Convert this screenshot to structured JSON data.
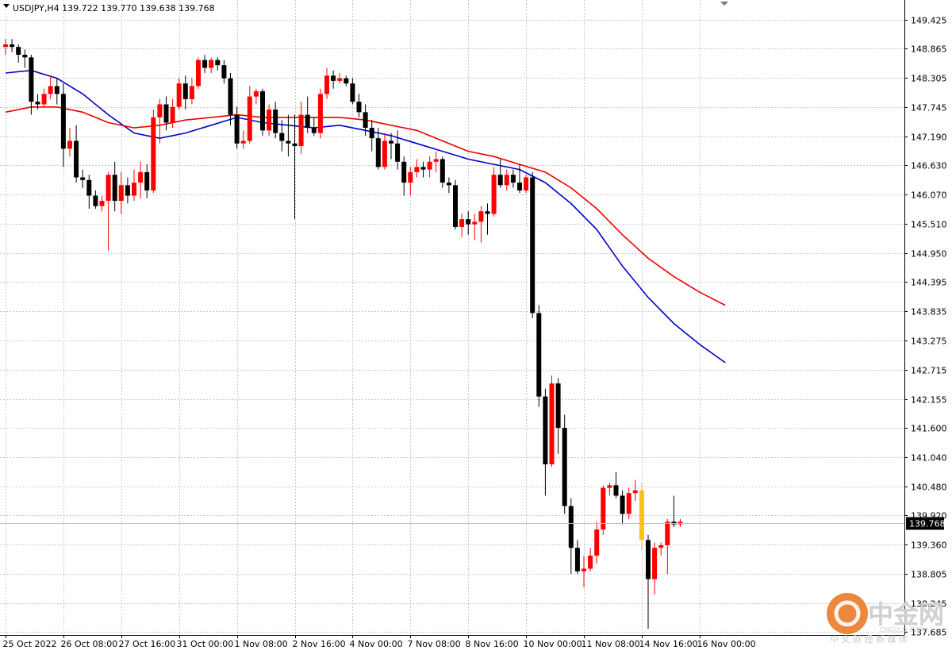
{
  "window": {
    "title": "USDJPY,H4  139.722 139.770 139.638 139.768"
  },
  "watermark": {
    "brand": "中金网",
    "site": "CNGOLD.COM",
    "tagline": "中 文 财 经 新 媒 体",
    "icon": "cngold-logo-icon"
  },
  "colors": {
    "bull": "#ff0000",
    "bear": "#000000",
    "highlight": "#f5c518",
    "ma_fast": "#0000cc",
    "ma_slow": "#ee0000",
    "grid": "#c8c8c8",
    "price_tag_bg": "#000000"
  },
  "chart_data": {
    "type": "candlestick",
    "symbol": "USDJPY",
    "timeframe": "H4",
    "title": "USDJPY,H4  139.722 139.770 139.638 139.768",
    "current_price": "139.768",
    "ylim": [
      137.63,
      149.8
    ],
    "grid": true,
    "y_ticks": [
      "149.425",
      "148.865",
      "148.305",
      "147.745",
      "147.190",
      "146.630",
      "146.070",
      "145.510",
      "144.950",
      "144.395",
      "143.835",
      "143.275",
      "142.715",
      "142.155",
      "141.600",
      "141.040",
      "140.480",
      "139.920",
      "139.360",
      "138.805",
      "138.245",
      "137.685"
    ],
    "x_ticks": [
      {
        "index": 0,
        "label": "25 Oct 2022"
      },
      {
        "index": 9,
        "label": "26 Oct 08:00"
      },
      {
        "index": 18,
        "label": "27 Oct 16:00"
      },
      {
        "index": 27,
        "label": "31 Oct 00:00"
      },
      {
        "index": 36,
        "label": "1 Nov 08:00"
      },
      {
        "index": 45,
        "label": "2 Nov 16:00"
      },
      {
        "index": 54,
        "label": "4 Nov 00:00"
      },
      {
        "index": 63,
        "label": "7 Nov 08:00"
      },
      {
        "index": 72,
        "label": "8 Nov 16:00"
      },
      {
        "index": 81,
        "label": "10 Nov 00:00"
      },
      {
        "index": 90,
        "label": "11 Nov 08:00"
      },
      {
        "index": 99,
        "label": "14 Nov 16:00"
      },
      {
        "index": 108,
        "label": "16 Nov 00:00"
      }
    ],
    "candles": [
      {
        "o": 148.9,
        "h": 149.05,
        "l": 148.75,
        "c": 148.95
      },
      {
        "o": 148.95,
        "h": 149.05,
        "l": 148.8,
        "c": 148.9
      },
      {
        "o": 148.9,
        "h": 148.95,
        "l": 148.6,
        "c": 148.75
      },
      {
        "o": 148.75,
        "h": 148.85,
        "l": 148.5,
        "c": 148.7
      },
      {
        "o": 148.7,
        "h": 148.75,
        "l": 147.6,
        "c": 147.85
      },
      {
        "o": 147.85,
        "h": 148.0,
        "l": 147.7,
        "c": 147.8
      },
      {
        "o": 147.8,
        "h": 148.1,
        "l": 147.75,
        "c": 148.0
      },
      {
        "o": 148.0,
        "h": 148.35,
        "l": 147.9,
        "c": 148.15
      },
      {
        "o": 148.15,
        "h": 148.3,
        "l": 147.8,
        "c": 148.0
      },
      {
        "o": 148.0,
        "h": 148.2,
        "l": 146.6,
        "c": 146.95
      },
      {
        "o": 146.95,
        "h": 147.35,
        "l": 146.8,
        "c": 147.1
      },
      {
        "o": 147.1,
        "h": 147.4,
        "l": 146.3,
        "c": 146.4
      },
      {
        "o": 146.4,
        "h": 146.55,
        "l": 146.2,
        "c": 146.35
      },
      {
        "o": 146.35,
        "h": 146.45,
        "l": 145.8,
        "c": 146.05
      },
      {
        "o": 146.05,
        "h": 146.15,
        "l": 145.8,
        "c": 145.85
      },
      {
        "o": 145.85,
        "h": 146.05,
        "l": 145.75,
        "c": 145.95
      },
      {
        "o": 145.95,
        "h": 146.5,
        "l": 145.0,
        "c": 146.45
      },
      {
        "o": 146.45,
        "h": 146.7,
        "l": 145.75,
        "c": 145.95
      },
      {
        "o": 145.95,
        "h": 146.5,
        "l": 145.7,
        "c": 146.25
      },
      {
        "o": 146.25,
        "h": 146.4,
        "l": 145.9,
        "c": 146.05
      },
      {
        "o": 146.05,
        "h": 146.55,
        "l": 145.95,
        "c": 146.3
      },
      {
        "o": 146.3,
        "h": 146.7,
        "l": 146.0,
        "c": 146.5
      },
      {
        "o": 146.5,
        "h": 146.65,
        "l": 146.0,
        "c": 146.15
      },
      {
        "o": 146.15,
        "h": 147.7,
        "l": 146.1,
        "c": 147.55
      },
      {
        "o": 147.55,
        "h": 147.9,
        "l": 147.05,
        "c": 147.8
      },
      {
        "o": 147.8,
        "h": 147.95,
        "l": 147.3,
        "c": 147.45
      },
      {
        "o": 147.45,
        "h": 147.9,
        "l": 147.35,
        "c": 147.75
      },
      {
        "o": 147.75,
        "h": 148.3,
        "l": 147.7,
        "c": 148.2
      },
      {
        "o": 148.2,
        "h": 148.35,
        "l": 147.7,
        "c": 147.9
      },
      {
        "o": 147.9,
        "h": 148.3,
        "l": 147.8,
        "c": 148.15
      },
      {
        "o": 148.15,
        "h": 148.7,
        "l": 148.1,
        "c": 148.65
      },
      {
        "o": 148.65,
        "h": 148.75,
        "l": 148.4,
        "c": 148.5
      },
      {
        "o": 148.5,
        "h": 148.7,
        "l": 148.4,
        "c": 148.65
      },
      {
        "o": 148.65,
        "h": 148.7,
        "l": 148.45,
        "c": 148.55
      },
      {
        "o": 148.55,
        "h": 148.65,
        "l": 148.2,
        "c": 148.3
      },
      {
        "o": 148.3,
        "h": 148.4,
        "l": 147.4,
        "c": 147.6
      },
      {
        "o": 147.6,
        "h": 147.75,
        "l": 146.95,
        "c": 147.05
      },
      {
        "o": 147.05,
        "h": 147.3,
        "l": 146.95,
        "c": 147.1
      },
      {
        "o": 147.1,
        "h": 148.15,
        "l": 147.05,
        "c": 147.95
      },
      {
        "o": 147.95,
        "h": 148.1,
        "l": 147.8,
        "c": 148.05
      },
      {
        "o": 148.05,
        "h": 148.1,
        "l": 147.2,
        "c": 147.3
      },
      {
        "o": 147.3,
        "h": 147.8,
        "l": 147.2,
        "c": 147.7
      },
      {
        "o": 147.7,
        "h": 147.85,
        "l": 147.15,
        "c": 147.25
      },
      {
        "o": 147.25,
        "h": 147.5,
        "l": 146.9,
        "c": 147.1
      },
      {
        "o": 147.1,
        "h": 147.6,
        "l": 146.8,
        "c": 147.05
      },
      {
        "o": 147.05,
        "h": 147.6,
        "l": 145.6,
        "c": 147.0
      },
      {
        "o": 147.0,
        "h": 147.85,
        "l": 146.85,
        "c": 147.6
      },
      {
        "o": 147.6,
        "h": 147.95,
        "l": 147.25,
        "c": 147.35
      },
      {
        "o": 147.35,
        "h": 147.55,
        "l": 147.2,
        "c": 147.25
      },
      {
        "o": 147.25,
        "h": 148.1,
        "l": 147.15,
        "c": 148.0
      },
      {
        "o": 148.0,
        "h": 148.5,
        "l": 147.9,
        "c": 148.35
      },
      {
        "o": 148.35,
        "h": 148.45,
        "l": 148.1,
        "c": 148.25
      },
      {
        "o": 148.25,
        "h": 148.4,
        "l": 148.2,
        "c": 148.3
      },
      {
        "o": 148.3,
        "h": 148.35,
        "l": 148.15,
        "c": 148.2
      },
      {
        "o": 148.2,
        "h": 148.3,
        "l": 147.8,
        "c": 147.85
      },
      {
        "o": 147.85,
        "h": 148.0,
        "l": 147.55,
        "c": 147.65
      },
      {
        "o": 147.65,
        "h": 147.8,
        "l": 147.2,
        "c": 147.35
      },
      {
        "o": 147.35,
        "h": 147.5,
        "l": 146.9,
        "c": 147.15
      },
      {
        "o": 147.15,
        "h": 147.35,
        "l": 146.55,
        "c": 146.6
      },
      {
        "o": 146.6,
        "h": 147.25,
        "l": 146.55,
        "c": 147.1
      },
      {
        "o": 147.1,
        "h": 147.25,
        "l": 146.75,
        "c": 147.05
      },
      {
        "o": 147.05,
        "h": 147.3,
        "l": 146.55,
        "c": 146.7
      },
      {
        "o": 146.7,
        "h": 146.8,
        "l": 146.05,
        "c": 146.3
      },
      {
        "o": 146.3,
        "h": 146.6,
        "l": 146.05,
        "c": 146.5
      },
      {
        "o": 146.5,
        "h": 146.75,
        "l": 146.4,
        "c": 146.6
      },
      {
        "o": 146.6,
        "h": 146.7,
        "l": 146.4,
        "c": 146.55
      },
      {
        "o": 146.55,
        "h": 146.8,
        "l": 146.4,
        "c": 146.7
      },
      {
        "o": 146.7,
        "h": 146.9,
        "l": 146.5,
        "c": 146.75
      },
      {
        "o": 146.75,
        "h": 146.8,
        "l": 146.2,
        "c": 146.3
      },
      {
        "o": 146.3,
        "h": 146.4,
        "l": 146.1,
        "c": 146.25
      },
      {
        "o": 146.25,
        "h": 146.35,
        "l": 145.4,
        "c": 145.45
      },
      {
        "o": 145.45,
        "h": 145.7,
        "l": 145.25,
        "c": 145.6
      },
      {
        "o": 145.6,
        "h": 145.75,
        "l": 145.3,
        "c": 145.5
      },
      {
        "o": 145.5,
        "h": 145.7,
        "l": 145.2,
        "c": 145.55
      },
      {
        "o": 145.55,
        "h": 145.85,
        "l": 145.15,
        "c": 145.75
      },
      {
        "o": 145.75,
        "h": 145.9,
        "l": 145.3,
        "c": 145.7
      },
      {
        "o": 145.7,
        "h": 146.6,
        "l": 145.65,
        "c": 146.45
      },
      {
        "o": 146.45,
        "h": 146.75,
        "l": 146.2,
        "c": 146.25
      },
      {
        "o": 146.25,
        "h": 146.55,
        "l": 146.15,
        "c": 146.45
      },
      {
        "o": 146.45,
        "h": 146.55,
        "l": 146.2,
        "c": 146.3
      },
      {
        "o": 146.3,
        "h": 146.65,
        "l": 146.1,
        "c": 146.15
      },
      {
        "o": 146.15,
        "h": 146.45,
        "l": 146.1,
        "c": 146.4
      },
      {
        "o": 146.4,
        "h": 146.5,
        "l": 143.7,
        "c": 143.8
      },
      {
        "o": 143.8,
        "h": 143.95,
        "l": 142.0,
        "c": 142.2
      },
      {
        "o": 142.2,
        "h": 142.35,
        "l": 140.3,
        "c": 140.9
      },
      {
        "o": 140.9,
        "h": 142.6,
        "l": 140.85,
        "c": 142.45
      },
      {
        "o": 142.45,
        "h": 142.55,
        "l": 141.1,
        "c": 141.6
      },
      {
        "o": 141.6,
        "h": 141.85,
        "l": 139.95,
        "c": 140.1
      },
      {
        "o": 140.1,
        "h": 140.25,
        "l": 138.8,
        "c": 139.3
      },
      {
        "o": 139.3,
        "h": 139.45,
        "l": 138.8,
        "c": 138.85
      },
      {
        "o": 138.85,
        "h": 139.15,
        "l": 138.55,
        "c": 138.9
      },
      {
        "o": 138.9,
        "h": 139.3,
        "l": 138.85,
        "c": 139.15
      },
      {
        "o": 139.15,
        "h": 139.8,
        "l": 139.0,
        "c": 139.65
      },
      {
        "o": 139.65,
        "h": 140.5,
        "l": 139.55,
        "c": 140.45
      },
      {
        "o": 140.45,
        "h": 140.55,
        "l": 140.3,
        "c": 140.5
      },
      {
        "o": 140.5,
        "h": 140.75,
        "l": 140.25,
        "c": 140.3
      },
      {
        "o": 140.3,
        "h": 140.4,
        "l": 139.75,
        "c": 139.95
      },
      {
        "o": 139.95,
        "h": 140.45,
        "l": 139.85,
        "c": 140.35
      },
      {
        "o": 140.35,
        "h": 140.6,
        "l": 140.2,
        "c": 140.4
      },
      {
        "o": 140.4,
        "h": 140.55,
        "l": 139.25,
        "c": 139.45,
        "highlight": true
      },
      {
        "o": 139.45,
        "h": 139.55,
        "l": 137.75,
        "c": 138.7
      },
      {
        "o": 138.7,
        "h": 139.4,
        "l": 138.4,
        "c": 139.3
      },
      {
        "o": 139.3,
        "h": 139.4,
        "l": 139.15,
        "c": 139.35
      },
      {
        "o": 139.35,
        "h": 139.85,
        "l": 138.8,
        "c": 139.8
      },
      {
        "o": 139.8,
        "h": 140.3,
        "l": 139.7,
        "c": 139.75
      },
      {
        "o": 139.75,
        "h": 139.85,
        "l": 139.7,
        "c": 139.8
      }
    ],
    "series": [
      {
        "type": "line",
        "color": "#0000cc",
        "points": [
          {
            "i": 0,
            "v": 148.4
          },
          {
            "i": 4,
            "v": 148.45
          },
          {
            "i": 8,
            "v": 148.3
          },
          {
            "i": 12,
            "v": 148.0
          },
          {
            "i": 16,
            "v": 147.6
          },
          {
            "i": 20,
            "v": 147.25
          },
          {
            "i": 24,
            "v": 147.15
          },
          {
            "i": 28,
            "v": 147.25
          },
          {
            "i": 32,
            "v": 147.4
          },
          {
            "i": 36,
            "v": 147.55
          },
          {
            "i": 40,
            "v": 147.45
          },
          {
            "i": 44,
            "v": 147.4
          },
          {
            "i": 48,
            "v": 147.35
          },
          {
            "i": 52,
            "v": 147.4
          },
          {
            "i": 56,
            "v": 147.3
          },
          {
            "i": 60,
            "v": 147.2
          },
          {
            "i": 64,
            "v": 147.05
          },
          {
            "i": 68,
            "v": 146.9
          },
          {
            "i": 72,
            "v": 146.75
          },
          {
            "i": 76,
            "v": 146.65
          },
          {
            "i": 80,
            "v": 146.55
          },
          {
            "i": 84,
            "v": 146.3
          },
          {
            "i": 88,
            "v": 145.9
          },
          {
            "i": 92,
            "v": 145.4
          },
          {
            "i": 96,
            "v": 144.7
          },
          {
            "i": 100,
            "v": 144.1
          },
          {
            "i": 104,
            "v": 143.6
          },
          {
            "i": 108,
            "v": 143.2
          },
          {
            "i": 112,
            "v": 142.85
          }
        ]
      },
      {
        "type": "line",
        "color": "#ee0000",
        "points": [
          {
            "i": 0,
            "v": 147.65
          },
          {
            "i": 4,
            "v": 147.75
          },
          {
            "i": 8,
            "v": 147.75
          },
          {
            "i": 12,
            "v": 147.65
          },
          {
            "i": 16,
            "v": 147.45
          },
          {
            "i": 20,
            "v": 147.35
          },
          {
            "i": 24,
            "v": 147.4
          },
          {
            "i": 28,
            "v": 147.5
          },
          {
            "i": 32,
            "v": 147.55
          },
          {
            "i": 36,
            "v": 147.6
          },
          {
            "i": 40,
            "v": 147.55
          },
          {
            "i": 44,
            "v": 147.55
          },
          {
            "i": 48,
            "v": 147.55
          },
          {
            "i": 52,
            "v": 147.55
          },
          {
            "i": 56,
            "v": 147.5
          },
          {
            "i": 60,
            "v": 147.4
          },
          {
            "i": 64,
            "v": 147.3
          },
          {
            "i": 68,
            "v": 147.1
          },
          {
            "i": 72,
            "v": 146.9
          },
          {
            "i": 76,
            "v": 146.8
          },
          {
            "i": 80,
            "v": 146.65
          },
          {
            "i": 84,
            "v": 146.5
          },
          {
            "i": 88,
            "v": 146.2
          },
          {
            "i": 92,
            "v": 145.8
          },
          {
            "i": 96,
            "v": 145.3
          },
          {
            "i": 100,
            "v": 144.85
          },
          {
            "i": 104,
            "v": 144.5
          },
          {
            "i": 108,
            "v": 144.2
          },
          {
            "i": 112,
            "v": 143.95
          }
        ]
      }
    ]
  }
}
